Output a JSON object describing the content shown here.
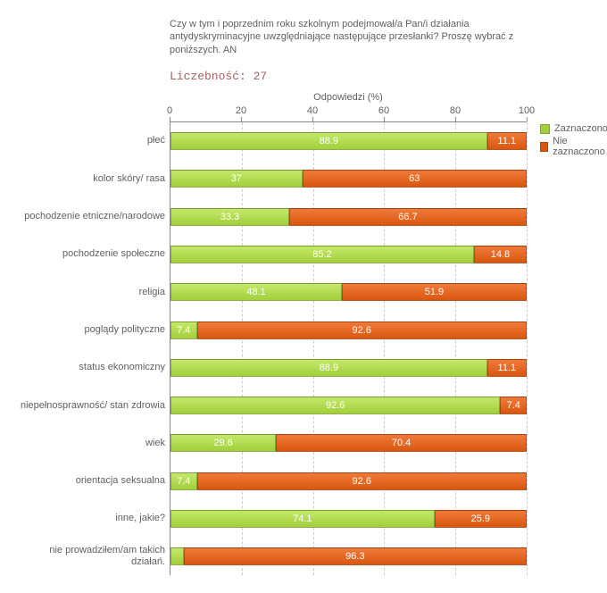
{
  "title": "Czy w tym i poprzednim roku szkolnym podejmował/a Pan/i działania antydyskryminacyjne uwzględniające następujące przesłanki? Proszę wybrać z poniższych. AN",
  "subtitle": "Liczebność: 27",
  "axis_title": "Odpowiedzi (%)",
  "xlim": [
    0,
    100
  ],
  "xtick_step": 20,
  "xticks": [
    0,
    20,
    40,
    60,
    80,
    100
  ],
  "grid_color": "#cccccc",
  "background_color": "#ffffff",
  "title_fontsize": 11,
  "label_fontsize": 11,
  "colors": {
    "marked": "#a2cf3a",
    "not_marked": "#d9570f"
  },
  "legend": {
    "items": [
      {
        "label": "Zaznaczono",
        "color": "#a2cf3a"
      },
      {
        "label": "Nie zaznaczono",
        "color": "#d9570f"
      }
    ]
  },
  "rows": [
    {
      "label": "płeć",
      "marked": 88.9,
      "not_marked": 11.1,
      "marked_text": "88.9",
      "not_marked_text": "11.1"
    },
    {
      "label": "kolor skóry/ rasa",
      "marked": 37,
      "not_marked": 63,
      "marked_text": "37",
      "not_marked_text": "63"
    },
    {
      "label": "pochodzenie etniczne/narodowe",
      "marked": 33.3,
      "not_marked": 66.7,
      "marked_text": "33.3",
      "not_marked_text": "66.7"
    },
    {
      "label": "pochodzenie społeczne",
      "marked": 85.2,
      "not_marked": 14.8,
      "marked_text": "85.2",
      "not_marked_text": "14.8"
    },
    {
      "label": "religia",
      "marked": 48.1,
      "not_marked": 51.9,
      "marked_text": "48.1",
      "not_marked_text": "51.9"
    },
    {
      "label": "poglądy polityczne",
      "marked": 7.4,
      "not_marked": 92.6,
      "marked_text": "7.4",
      "not_marked_text": "92.6"
    },
    {
      "label": "status ekonomiczny",
      "marked": 88.9,
      "not_marked": 11.1,
      "marked_text": "88.9",
      "not_marked_text": "11.1"
    },
    {
      "label": "niepełnosprawność/ stan zdrowia",
      "marked": 92.6,
      "not_marked": 7.4,
      "marked_text": "92.6",
      "not_marked_text": "7.4"
    },
    {
      "label": "wiek",
      "marked": 29.6,
      "not_marked": 70.4,
      "marked_text": "29.6",
      "not_marked_text": "70.4"
    },
    {
      "label": "orientacja seksualna",
      "marked": 7.4,
      "not_marked": 92.6,
      "marked_text": "7.4",
      "not_marked_text": "92.6"
    },
    {
      "label": "inne, jakie?",
      "marked": 74.1,
      "not_marked": 25.9,
      "marked_text": "74.1",
      "not_marked_text": "25.9"
    },
    {
      "label": "nie prowadziłem/am takich działań.",
      "marked": 3.7,
      "not_marked": 96.3,
      "marked_text": "",
      "not_marked_text": "96.3"
    }
  ]
}
